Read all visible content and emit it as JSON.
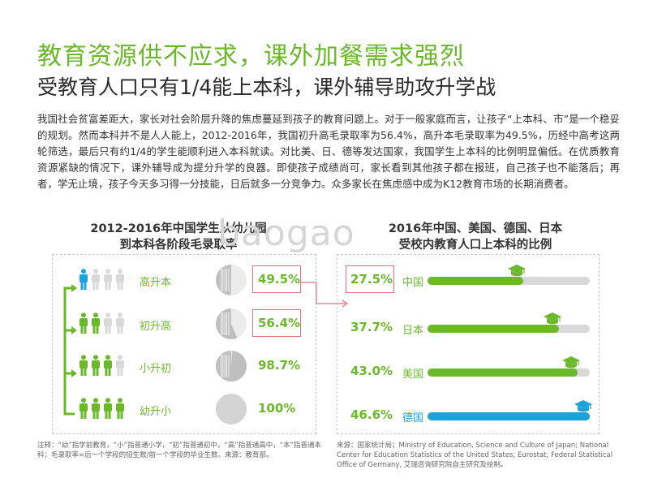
{
  "header": {
    "title": "教育资源供不应求，课外加餐需求强烈",
    "subtitle": "受教育人口只有1/4能上本科，课外辅导助攻升学战"
  },
  "intro": "我国社会贫富差距大，家长对社会阶层升降的焦虑蔓延到孩子的教育问题上。对于一般家庭而言，让孩子“上本科、市”是一个稳妥的规划。然而本科并不是人人能上，2012-2016年，我国初升高毛录取率为56.4%，高升本毛录取率为49.5%，历经中高考这两轮筛选，最后只有约1/4的学生能顺利进入本科就读。对比美、日、德等发达国家，我国学生上本科的比例明显偏低。在优质教育资源紧缺的情况下，课外辅导成为提分升学的良器。即使孩子成绩尚可，家长看到其他孩子都在报班，自己孩子也不能落后；再者，学无止境，孩子今天多习得一分技能，日后就多一分竞争力。众多家长在焦虑感中成为K12教育市场的长期消费者。",
  "watermark": "baogao",
  "colors": {
    "green": "#6bb82a",
    "blue": "#1aa3d9",
    "grey": "#d9d9d9",
    "pink": "#e8707f"
  },
  "left_panel": {
    "title_line1": "2012-2016年中国学生从幼儿园",
    "title_line2": "到本科各阶段毛录取率",
    "rows": [
      {
        "label": "高升本",
        "value": "49.5%",
        "fraction": 0.495,
        "highlight": true
      },
      {
        "label": "初升高",
        "value": "56.4%",
        "fraction": 0.564,
        "highlight": true
      },
      {
        "label": "小升初",
        "value": "98.7%",
        "fraction": 0.987,
        "highlight": false
      },
      {
        "label": "幼升小",
        "value": "100%",
        "fraction": 1.0,
        "highlight": false
      }
    ]
  },
  "right_panel": {
    "title_line1": "2016年中国、美国、德国、日本",
    "title_line2": "受校内教育人口上本科的比例",
    "rows": [
      {
        "country": "中国",
        "value": "27.5%",
        "fraction": 0.275,
        "highlight": true
      },
      {
        "country": "日本",
        "value": "37.7%",
        "fraction": 0.377,
        "highlight": false
      },
      {
        "country": "美国",
        "value": "43.0%",
        "fraction": 0.43,
        "highlight": false
      },
      {
        "country": "德国",
        "value": "46.6%",
        "fraction": 0.466,
        "highlight": false
      }
    ]
  },
  "chart_data": [
    {
      "type": "pie",
      "title": "2012-2016年中国学生从幼儿园到本科各阶段毛录取率",
      "categories": [
        "高升本",
        "初升高",
        "小升初",
        "幼升小"
      ],
      "values": [
        49.5,
        56.4,
        98.7,
        100
      ]
    },
    {
      "type": "bar",
      "title": "2016年中国、美国、德国、日本受校内教育人口上本科的比例",
      "categories": [
        "中国",
        "日本",
        "美国",
        "德国"
      ],
      "values": [
        27.5,
        37.7,
        43.0,
        46.6
      ]
    }
  ],
  "notes": {
    "left": "注释：“幼”指学前教育，“小”指普通小学，“初”指普通初中，“高”指普通高中，“本”指普通本科；毛录取率=后一个学段的招生数/前一个学段的毕业生数。来源：教育部。",
    "right": "来源：国家统计局；Ministry of Education, Science and Culture of Japan; National Center for Education Statistics of the United States; Eurostat; Federal Statistical Office of Germany, 艾瑞咨询研究院自主研究及绘制。"
  }
}
